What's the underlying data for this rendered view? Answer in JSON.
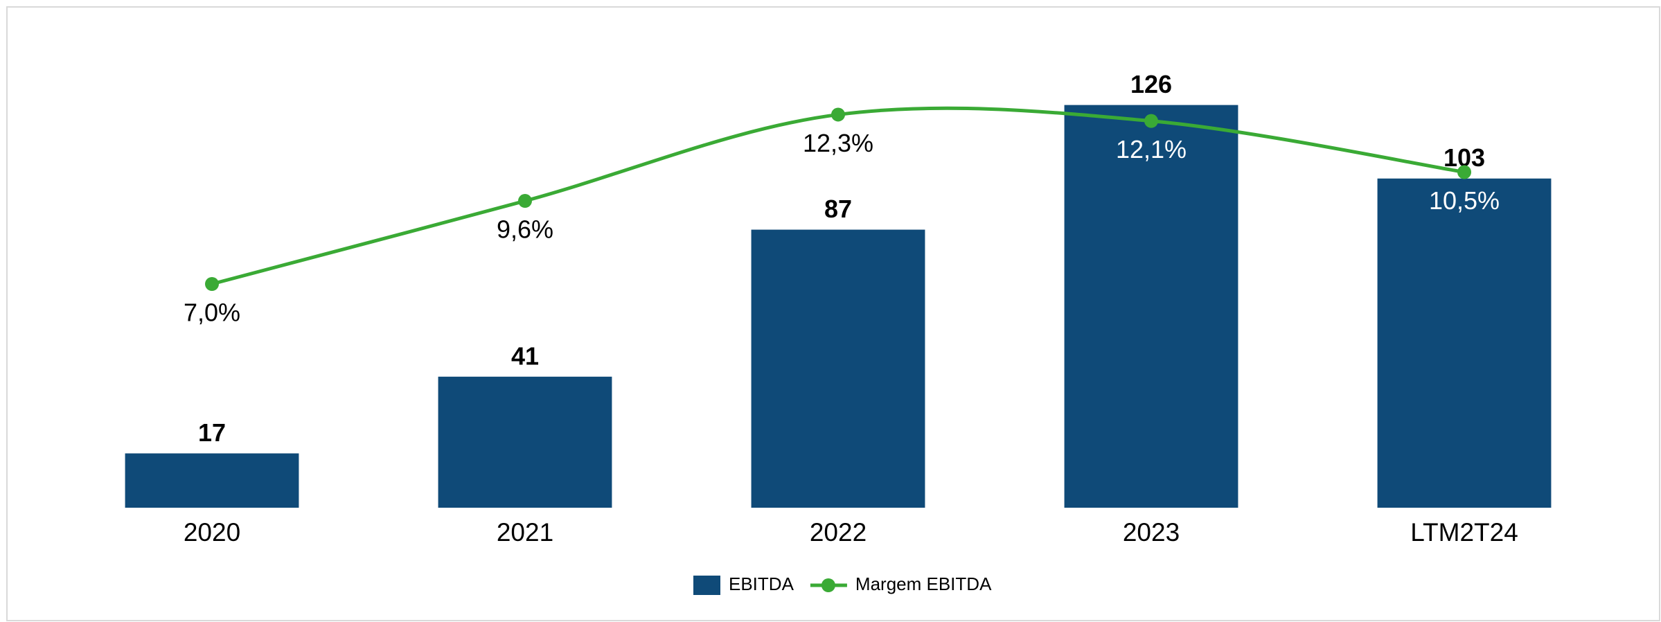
{
  "chart_data": {
    "type": "bar",
    "categories": [
      "2020",
      "2021",
      "2022",
      "2023",
      "LTM2T24"
    ],
    "series": [
      {
        "name": "EBITDA",
        "type": "bar",
        "color": "#0f4a78",
        "values": [
          17,
          41,
          87,
          126,
          103
        ]
      },
      {
        "name": "Margem EBITDA",
        "type": "line",
        "axis": "y2",
        "color": "#3aaa35",
        "values": [
          7.0,
          9.6,
          12.3,
          12.1,
          10.5
        ],
        "value_labels": [
          "7,0%",
          "9,6%",
          "12,3%",
          "12,1%",
          "10,5%"
        ]
      }
    ],
    "ylim": [
      0,
      140
    ],
    "y2lim": [
      0,
      14
    ],
    "legend": "bottom"
  }
}
